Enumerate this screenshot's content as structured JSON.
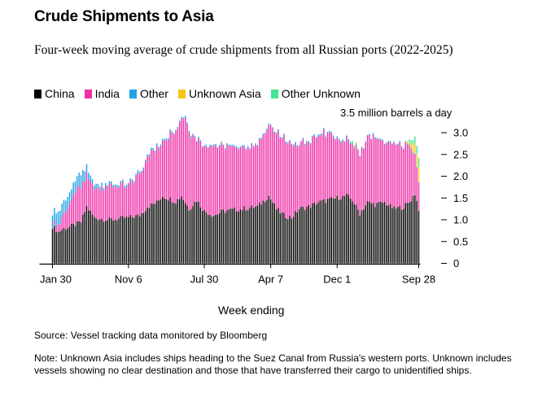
{
  "title": "Crude Shipments to Asia",
  "subtitle": "Four-week moving average of crude shipments from all Russian ports (2022-2025)",
  "legend": [
    {
      "name": "China",
      "color": "#000000"
    },
    {
      "name": "India",
      "color": "#ee2fa7"
    },
    {
      "name": "Other",
      "color": "#1fa4e4"
    },
    {
      "name": "Unknown Asia",
      "color": "#f5c518"
    },
    {
      "name": "Other Unknown",
      "color": "#43e597"
    }
  ],
  "unit_label": "3.5 million barrels a day",
  "x_axis_label": "Week ending",
  "source": "Source: Vessel tracking data monitored by Bloomberg",
  "note": "Note: Unknown Asia includes ships heading to the Suez Canal from Russia's western ports. Unknown includes vessels showing no clear destination and those that have transferred their cargo to unidentified ships.",
  "chart_data": {
    "type": "bar",
    "stacked": true,
    "xlabel": "Week ending",
    "ylabel": "3.5 million barrels a day",
    "ylim": [
      0,
      3.5
    ],
    "yticks": [
      0,
      0.5,
      1.0,
      1.5,
      2.0,
      2.5,
      3.0
    ],
    "ytick_labels": [
      "0",
      "0.5",
      "1.0",
      "1.5",
      "2.0",
      "2.5",
      "3.0"
    ],
    "xtick_labels": [
      "Jan 30",
      "Nov 6",
      "Jul 30",
      "Apr 7",
      "Dec 1",
      "Sep 28"
    ],
    "xtick_index": [
      0,
      40,
      80,
      115,
      150,
      193
    ],
    "weeks": 194,
    "series": [
      {
        "name": "China",
        "color": "#000000",
        "anchors": [
          [
            0,
            0.85
          ],
          [
            3,
            0.72
          ],
          [
            6,
            0.8
          ],
          [
            10,
            0.85
          ],
          [
            15,
            0.95
          ],
          [
            18,
            1.3
          ],
          [
            22,
            1.05
          ],
          [
            30,
            1.0
          ],
          [
            40,
            1.05
          ],
          [
            46,
            1.1
          ],
          [
            50,
            1.3
          ],
          [
            55,
            1.4
          ],
          [
            58,
            1.55
          ],
          [
            65,
            1.42
          ],
          [
            68,
            1.55
          ],
          [
            72,
            1.25
          ],
          [
            76,
            1.45
          ],
          [
            80,
            1.2
          ],
          [
            85,
            1.1
          ],
          [
            90,
            1.2
          ],
          [
            100,
            1.25
          ],
          [
            108,
            1.3
          ],
          [
            114,
            1.55
          ],
          [
            118,
            1.25
          ],
          [
            122,
            1.1
          ],
          [
            126,
            1.05
          ],
          [
            130,
            1.25
          ],
          [
            135,
            1.3
          ],
          [
            140,
            1.4
          ],
          [
            145,
            1.45
          ],
          [
            150,
            1.5
          ],
          [
            155,
            1.55
          ],
          [
            158,
            1.45
          ],
          [
            162,
            1.15
          ],
          [
            166,
            1.4
          ],
          [
            170,
            1.35
          ],
          [
            175,
            1.4
          ],
          [
            180,
            1.25
          ],
          [
            185,
            1.3
          ],
          [
            188,
            1.4
          ],
          [
            191,
            1.6
          ],
          [
            193,
            1.25
          ]
        ]
      },
      {
        "name": "India",
        "color": "#ee2fa7",
        "anchors": [
          [
            0,
            0.05
          ],
          [
            4,
            0.2
          ],
          [
            8,
            0.45
          ],
          [
            12,
            0.75
          ],
          [
            15,
            0.8
          ],
          [
            20,
            0.65
          ],
          [
            25,
            0.7
          ],
          [
            30,
            0.8
          ],
          [
            35,
            0.75
          ],
          [
            40,
            0.7
          ],
          [
            44,
            0.9
          ],
          [
            48,
            1.0
          ],
          [
            52,
            1.25
          ],
          [
            56,
            1.2
          ],
          [
            60,
            1.35
          ],
          [
            64,
            1.6
          ],
          [
            67,
            1.7
          ],
          [
            70,
            1.95
          ],
          [
            72,
            1.8
          ],
          [
            76,
            1.4
          ],
          [
            80,
            1.5
          ],
          [
            85,
            1.6
          ],
          [
            90,
            1.5
          ],
          [
            95,
            1.4
          ],
          [
            100,
            1.45
          ],
          [
            105,
            1.35
          ],
          [
            110,
            1.45
          ],
          [
            113,
            1.6
          ],
          [
            116,
            1.65
          ],
          [
            120,
            1.75
          ],
          [
            125,
            1.7
          ],
          [
            130,
            1.5
          ],
          [
            135,
            1.5
          ],
          [
            140,
            1.55
          ],
          [
            145,
            1.55
          ],
          [
            150,
            1.35
          ],
          [
            155,
            1.25
          ],
          [
            160,
            1.35
          ],
          [
            163,
            1.4
          ],
          [
            166,
            1.45
          ],
          [
            170,
            1.55
          ],
          [
            175,
            1.35
          ],
          [
            180,
            1.5
          ],
          [
            185,
            1.4
          ],
          [
            188,
            1.3
          ],
          [
            191,
            0.9
          ],
          [
            193,
            0.6
          ]
        ]
      },
      {
        "name": "Other",
        "color": "#1fa4e4",
        "anchors": [
          [
            0,
            0.3
          ],
          [
            5,
            0.3
          ],
          [
            10,
            0.25
          ],
          [
            15,
            0.3
          ],
          [
            20,
            0.12
          ],
          [
            25,
            0.08
          ],
          [
            30,
            0.05
          ],
          [
            40,
            0.05
          ],
          [
            50,
            0.05
          ],
          [
            60,
            0.04
          ],
          [
            70,
            0.04
          ],
          [
            80,
            0.03
          ],
          [
            100,
            0.03
          ],
          [
            120,
            0.03
          ],
          [
            140,
            0.03
          ],
          [
            160,
            0.03
          ],
          [
            180,
            0.02
          ],
          [
            193,
            0.02
          ]
        ]
      },
      {
        "name": "Unknown Asia",
        "color": "#f5c518",
        "anchors": [
          [
            0,
            0
          ],
          [
            140,
            0
          ],
          [
            158,
            0
          ],
          [
            160,
            0.05
          ],
          [
            162,
            0
          ],
          [
            186,
            0
          ],
          [
            189,
            0.1
          ],
          [
            191,
            0.25
          ],
          [
            193,
            0.35
          ]
        ]
      },
      {
        "name": "Other Unknown",
        "color": "#43e597",
        "anchors": [
          [
            0,
            0
          ],
          [
            156,
            0
          ],
          [
            158,
            0.05
          ],
          [
            160,
            0
          ],
          [
            186,
            0
          ],
          [
            188,
            0.05
          ],
          [
            191,
            0.15
          ],
          [
            193,
            0.2
          ]
        ]
      }
    ]
  }
}
